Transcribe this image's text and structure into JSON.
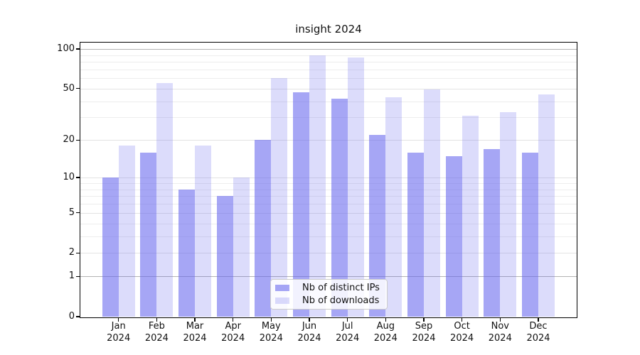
{
  "title": "insight 2024",
  "chart_data": {
    "type": "bar",
    "title": "insight 2024",
    "categories": [
      "Jan",
      "Feb",
      "Mar",
      "Apr",
      "May",
      "Jun",
      "Jul",
      "Aug",
      "Sep",
      "Oct",
      "Nov",
      "Dec"
    ],
    "x_year": "2024",
    "series": [
      {
        "name": "Nb of distinct IPs",
        "values": [
          10,
          16,
          8,
          7,
          20,
          47,
          42,
          22,
          16,
          15,
          17,
          16
        ]
      },
      {
        "name": "Nb of downloads",
        "values": [
          18,
          55,
          18,
          10,
          60,
          90,
          86,
          43,
          49,
          31,
          33,
          45
        ]
      }
    ],
    "y_axis": {
      "scale": "symlog ln(1+v)",
      "tick_values": [
        100,
        50,
        20,
        10,
        5,
        2,
        1,
        0
      ],
      "tick_labels": [
        "100",
        "50",
        "20",
        "10",
        "5",
        "2",
        "1",
        "0"
      ],
      "minor_tick_values": [
        3,
        4,
        6,
        7,
        8,
        9,
        30,
        40,
        60,
        70,
        80,
        90
      ],
      "emphasized_gridlines": [
        1,
        100
      ],
      "ylim": [
        0,
        112
      ]
    },
    "grid": true,
    "legend": {
      "position": "inside-bottom-center",
      "entries": [
        "Nb of distinct IPs",
        "Nb of downloads"
      ]
    },
    "colors": {
      "bar_base": "#6666ee",
      "alpha_distinct_ips": 0.58,
      "alpha_downloads": 0.23,
      "grid_major": "#e3e3e3",
      "grid_minor": "#ededed",
      "grid_emphasized": "#b3b3b3",
      "axis": "#000000",
      "legend_border": "#cccccc"
    }
  }
}
